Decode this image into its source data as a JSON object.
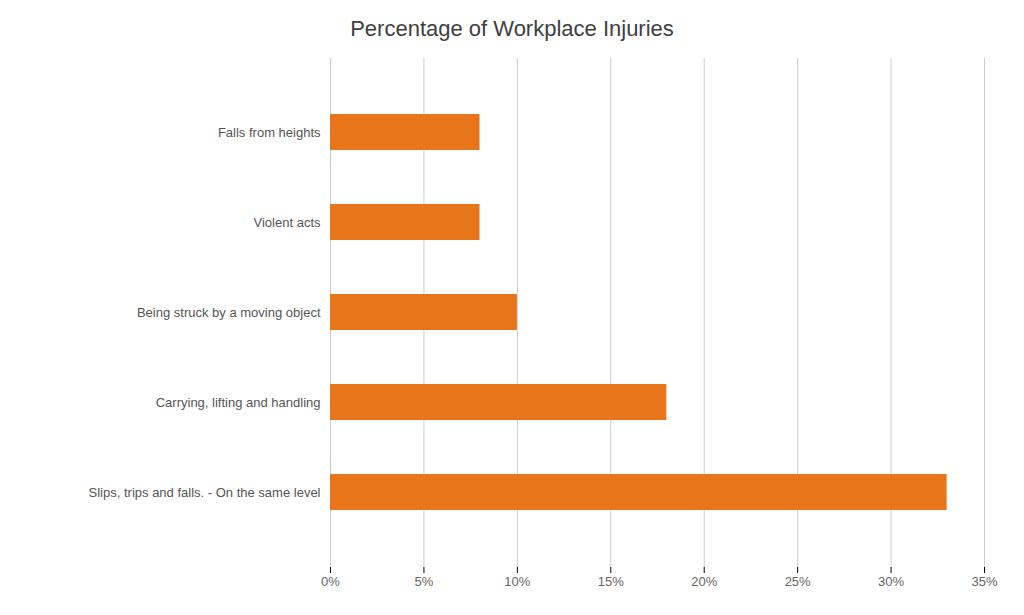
{
  "chart_data": {
    "type": "bar",
    "orientation": "horizontal",
    "title": "Percentage of Workplace Injuries",
    "categories": [
      "Slips, trips and falls. - On the same level",
      "Carrying, lifting and handling",
      "Being struck by a moving object",
      "Violent acts",
      "Falls from heights"
    ],
    "values": [
      33,
      18,
      10,
      8,
      8
    ],
    "color": "#E8751A",
    "xlim": [
      0,
      35
    ],
    "xticks": [
      {
        "value": 0,
        "label": "0%"
      },
      {
        "value": 5,
        "label": "5%"
      },
      {
        "value": 10,
        "label": "10%"
      },
      {
        "value": 15,
        "label": "15%"
      },
      {
        "value": 20,
        "label": "20%"
      },
      {
        "value": 25,
        "label": "25%"
      },
      {
        "value": 30,
        "label": "30%"
      },
      {
        "value": 35,
        "label": "35%"
      }
    ],
    "grid": true
  }
}
